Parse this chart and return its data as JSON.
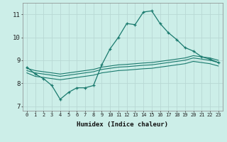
{
  "xlabel": "Humidex (Indice chaleur)",
  "background_color": "#cceee8",
  "line_color": "#1a7a6e",
  "grid_color": "#b8d8d4",
  "x": [
    0,
    1,
    2,
    3,
    4,
    5,
    6,
    7,
    8,
    9,
    10,
    11,
    12,
    13,
    14,
    15,
    16,
    17,
    18,
    19,
    20,
    21,
    22,
    23
  ],
  "y_main": [
    8.7,
    8.4,
    8.2,
    7.9,
    7.3,
    7.6,
    7.8,
    7.8,
    7.9,
    8.8,
    9.5,
    10.0,
    10.6,
    10.55,
    11.1,
    11.15,
    10.6,
    10.2,
    9.9,
    9.55,
    9.4,
    9.15,
    9.05,
    8.9
  ],
  "y_line1": [
    8.65,
    8.55,
    8.5,
    8.45,
    8.4,
    8.45,
    8.5,
    8.55,
    8.6,
    8.7,
    8.75,
    8.8,
    8.82,
    8.85,
    8.88,
    8.9,
    8.95,
    9.0,
    9.05,
    9.1,
    9.2,
    9.15,
    9.1,
    9.0
  ],
  "y_line2": [
    8.55,
    8.45,
    8.4,
    8.35,
    8.3,
    8.35,
    8.4,
    8.45,
    8.5,
    8.6,
    8.65,
    8.7,
    8.72,
    8.75,
    8.78,
    8.8,
    8.85,
    8.9,
    8.95,
    9.0,
    9.1,
    9.05,
    9.0,
    8.9
  ],
  "y_line3": [
    8.45,
    8.3,
    8.25,
    8.2,
    8.15,
    8.2,
    8.25,
    8.3,
    8.35,
    8.45,
    8.5,
    8.55,
    8.57,
    8.6,
    8.63,
    8.65,
    8.7,
    8.75,
    8.8,
    8.85,
    8.95,
    8.9,
    8.85,
    8.75
  ],
  "ylim": [
    6.8,
    11.5
  ],
  "xlim": [
    -0.5,
    23.5
  ],
  "yticks": [
    7,
    8,
    9,
    10,
    11
  ],
  "xticks": [
    0,
    1,
    2,
    3,
    4,
    5,
    6,
    7,
    8,
    9,
    10,
    11,
    12,
    13,
    14,
    15,
    16,
    17,
    18,
    19,
    20,
    21,
    22,
    23
  ]
}
